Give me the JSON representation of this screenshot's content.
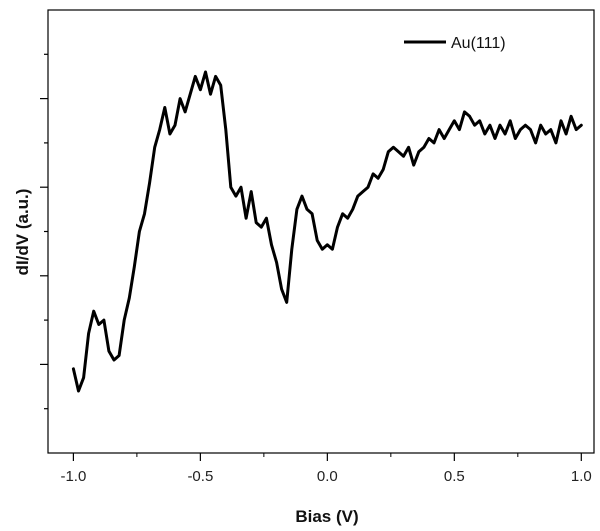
{
  "chart_data": {
    "type": "line",
    "xlabel": "Bias (V)",
    "ylabel": "dI/dV (a.u.)",
    "xlim": [
      -1.1,
      1.05
    ],
    "ylim": [
      0,
      10
    ],
    "x_ticks": [
      -1.0,
      -0.5,
      0.0,
      0.5,
      1.0
    ],
    "x_tick_labels": [
      "-1.0",
      "-0.5",
      "0.0",
      "0.5",
      "1.0"
    ],
    "y_tick_labels_shown": false,
    "grid": false,
    "legend_position": "top-right",
    "line_color": "#000000",
    "series": [
      {
        "name": "Au(111)",
        "x": [
          -1.0,
          -0.98,
          -0.96,
          -0.94,
          -0.92,
          -0.9,
          -0.88,
          -0.86,
          -0.84,
          -0.82,
          -0.8,
          -0.78,
          -0.76,
          -0.74,
          -0.72,
          -0.7,
          -0.68,
          -0.66,
          -0.64,
          -0.62,
          -0.6,
          -0.58,
          -0.56,
          -0.54,
          -0.52,
          -0.5,
          -0.48,
          -0.46,
          -0.44,
          -0.42,
          -0.4,
          -0.38,
          -0.36,
          -0.34,
          -0.32,
          -0.3,
          -0.28,
          -0.26,
          -0.24,
          -0.22,
          -0.2,
          -0.18,
          -0.16,
          -0.14,
          -0.12,
          -0.1,
          -0.08,
          -0.06,
          -0.04,
          -0.02,
          0.0,
          0.02,
          0.04,
          0.06,
          0.08,
          0.1,
          0.12,
          0.14,
          0.16,
          0.18,
          0.2,
          0.22,
          0.24,
          0.26,
          0.28,
          0.3,
          0.32,
          0.34,
          0.36,
          0.38,
          0.4,
          0.42,
          0.44,
          0.46,
          0.48,
          0.5,
          0.52,
          0.54,
          0.56,
          0.58,
          0.6,
          0.62,
          0.64,
          0.66,
          0.68,
          0.7,
          0.72,
          0.74,
          0.76,
          0.78,
          0.8,
          0.82,
          0.84,
          0.86,
          0.88,
          0.9,
          0.92,
          0.94,
          0.96,
          0.98,
          1.0
        ],
        "y": [
          1.9,
          1.4,
          1.7,
          2.7,
          3.2,
          2.9,
          3.0,
          2.3,
          2.1,
          2.2,
          3.0,
          3.5,
          4.2,
          5.0,
          5.4,
          6.1,
          6.9,
          7.3,
          7.8,
          7.2,
          7.4,
          8.0,
          7.7,
          8.1,
          8.5,
          8.2,
          8.6,
          8.1,
          8.5,
          8.3,
          7.3,
          6.0,
          5.8,
          6.0,
          5.3,
          5.9,
          5.2,
          5.1,
          5.3,
          4.7,
          4.3,
          3.7,
          3.4,
          4.6,
          5.5,
          5.8,
          5.5,
          5.4,
          4.8,
          4.6,
          4.7,
          4.6,
          5.1,
          5.4,
          5.3,
          5.5,
          5.8,
          5.9,
          6.0,
          6.3,
          6.2,
          6.4,
          6.8,
          6.9,
          6.8,
          6.7,
          6.9,
          6.5,
          6.8,
          6.9,
          7.1,
          7.0,
          7.3,
          7.1,
          7.3,
          7.5,
          7.3,
          7.7,
          7.6,
          7.4,
          7.5,
          7.2,
          7.4,
          7.1,
          7.4,
          7.2,
          7.5,
          7.1,
          7.3,
          7.4,
          7.3,
          7.0,
          7.4,
          7.2,
          7.3,
          7.0,
          7.5,
          7.2,
          7.6,
          7.3,
          7.4
        ]
      }
    ]
  }
}
